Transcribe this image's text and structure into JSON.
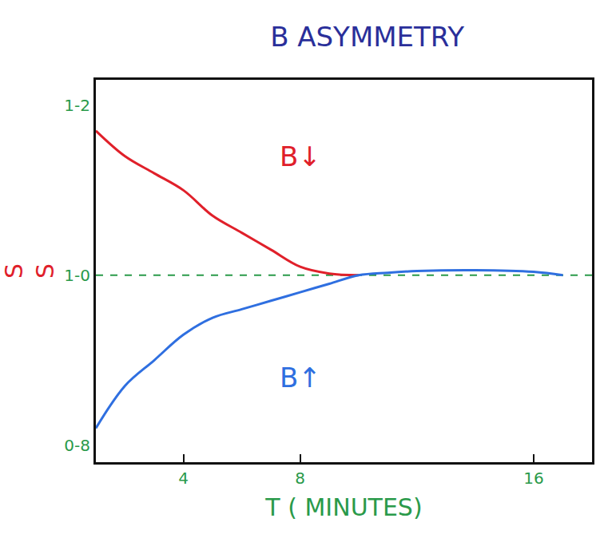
{
  "chart_data": {
    "type": "line",
    "title": "B ASYMMETRY",
    "xlabel": "T ( MINUTES)",
    "ylabel": "S\nS",
    "xlim": [
      1,
      18
    ],
    "xticks": [
      4,
      8,
      16
    ],
    "ylim": [
      0.78,
      1.23
    ],
    "yticks": [
      {
        "value": 0.8,
        "label": "0-8"
      },
      {
        "value": 1.0,
        "label": "1-0"
      },
      {
        "value": 1.2,
        "label": "1-2"
      }
    ],
    "grid": false,
    "series": [
      {
        "name": "B↓",
        "color": "#e0202a",
        "line_style": "solid",
        "x": [
          1,
          2,
          3,
          4,
          5,
          6,
          7,
          8,
          9,
          10
        ],
        "values": [
          1.17,
          1.14,
          1.12,
          1.1,
          1.07,
          1.05,
          1.03,
          1.01,
          1.002,
          1.0
        ]
      },
      {
        "name": "B↑",
        "color": "#2f6fe0",
        "line_style": "solid",
        "x": [
          1,
          2,
          3,
          4,
          5,
          6,
          7,
          8,
          9,
          10,
          11,
          12,
          14,
          16,
          17
        ],
        "values": [
          0.82,
          0.87,
          0.9,
          0.93,
          0.95,
          0.96,
          0.97,
          0.98,
          0.99,
          1.0,
          1.003,
          1.005,
          1.006,
          1.004,
          1.0
        ]
      }
    ],
    "annotations": [
      {
        "text": "B↓",
        "x": 8,
        "y": 1.14,
        "color": "#e0202a"
      },
      {
        "text": "B↑",
        "x": 8,
        "y": 0.88,
        "color": "#2f6fe0"
      },
      {
        "type": "hline",
        "y": 1.0,
        "color": "#2a9a4a",
        "line_style": "dash"
      }
    ]
  }
}
